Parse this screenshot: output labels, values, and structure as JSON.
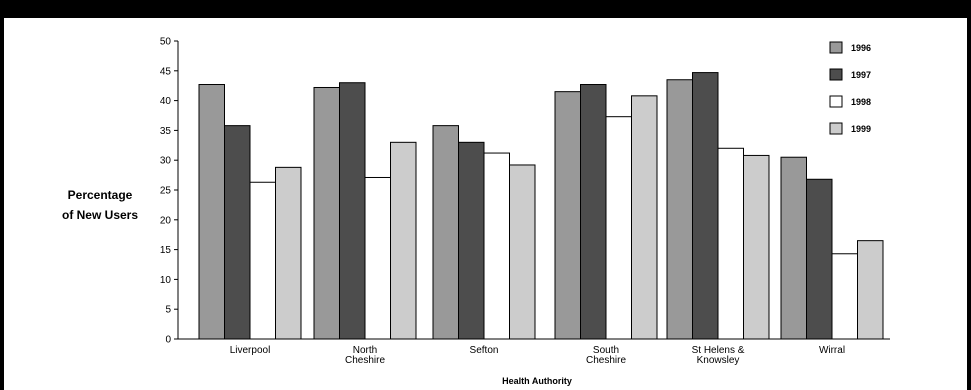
{
  "chart_data": {
    "type": "bar",
    "xlabel": "Health Authority",
    "ylabel": [
      "Percentage",
      "of New Users"
    ],
    "ylim": [
      0,
      50
    ],
    "yticks": [
      0,
      5,
      10,
      15,
      20,
      25,
      30,
      35,
      40,
      45,
      50
    ],
    "grid": false,
    "legend": "top-right",
    "categories": [
      [
        "Liverpool"
      ],
      [
        "North",
        "Cheshire"
      ],
      [
        "Sefton"
      ],
      [
        "South",
        "Cheshire"
      ],
      [
        "St Helens &",
        "Knowsley"
      ],
      [
        "Wirral"
      ]
    ],
    "series": [
      {
        "name": "1996",
        "color": "#999999",
        "values": [
          42.7,
          42.2,
          35.8,
          41.5,
          43.5,
          30.5
        ]
      },
      {
        "name": "1997",
        "color": "#4d4d4d",
        "values": [
          35.8,
          43.0,
          33.0,
          42.7,
          44.7,
          26.8
        ]
      },
      {
        "name": "1998",
        "color": "#ffffff",
        "values": [
          26.3,
          27.1,
          31.2,
          37.3,
          32.0,
          14.3
        ]
      },
      {
        "name": "1999",
        "color": "#cccccc",
        "values": [
          28.8,
          33.0,
          29.2,
          40.8,
          30.8,
          16.5
        ]
      }
    ]
  }
}
